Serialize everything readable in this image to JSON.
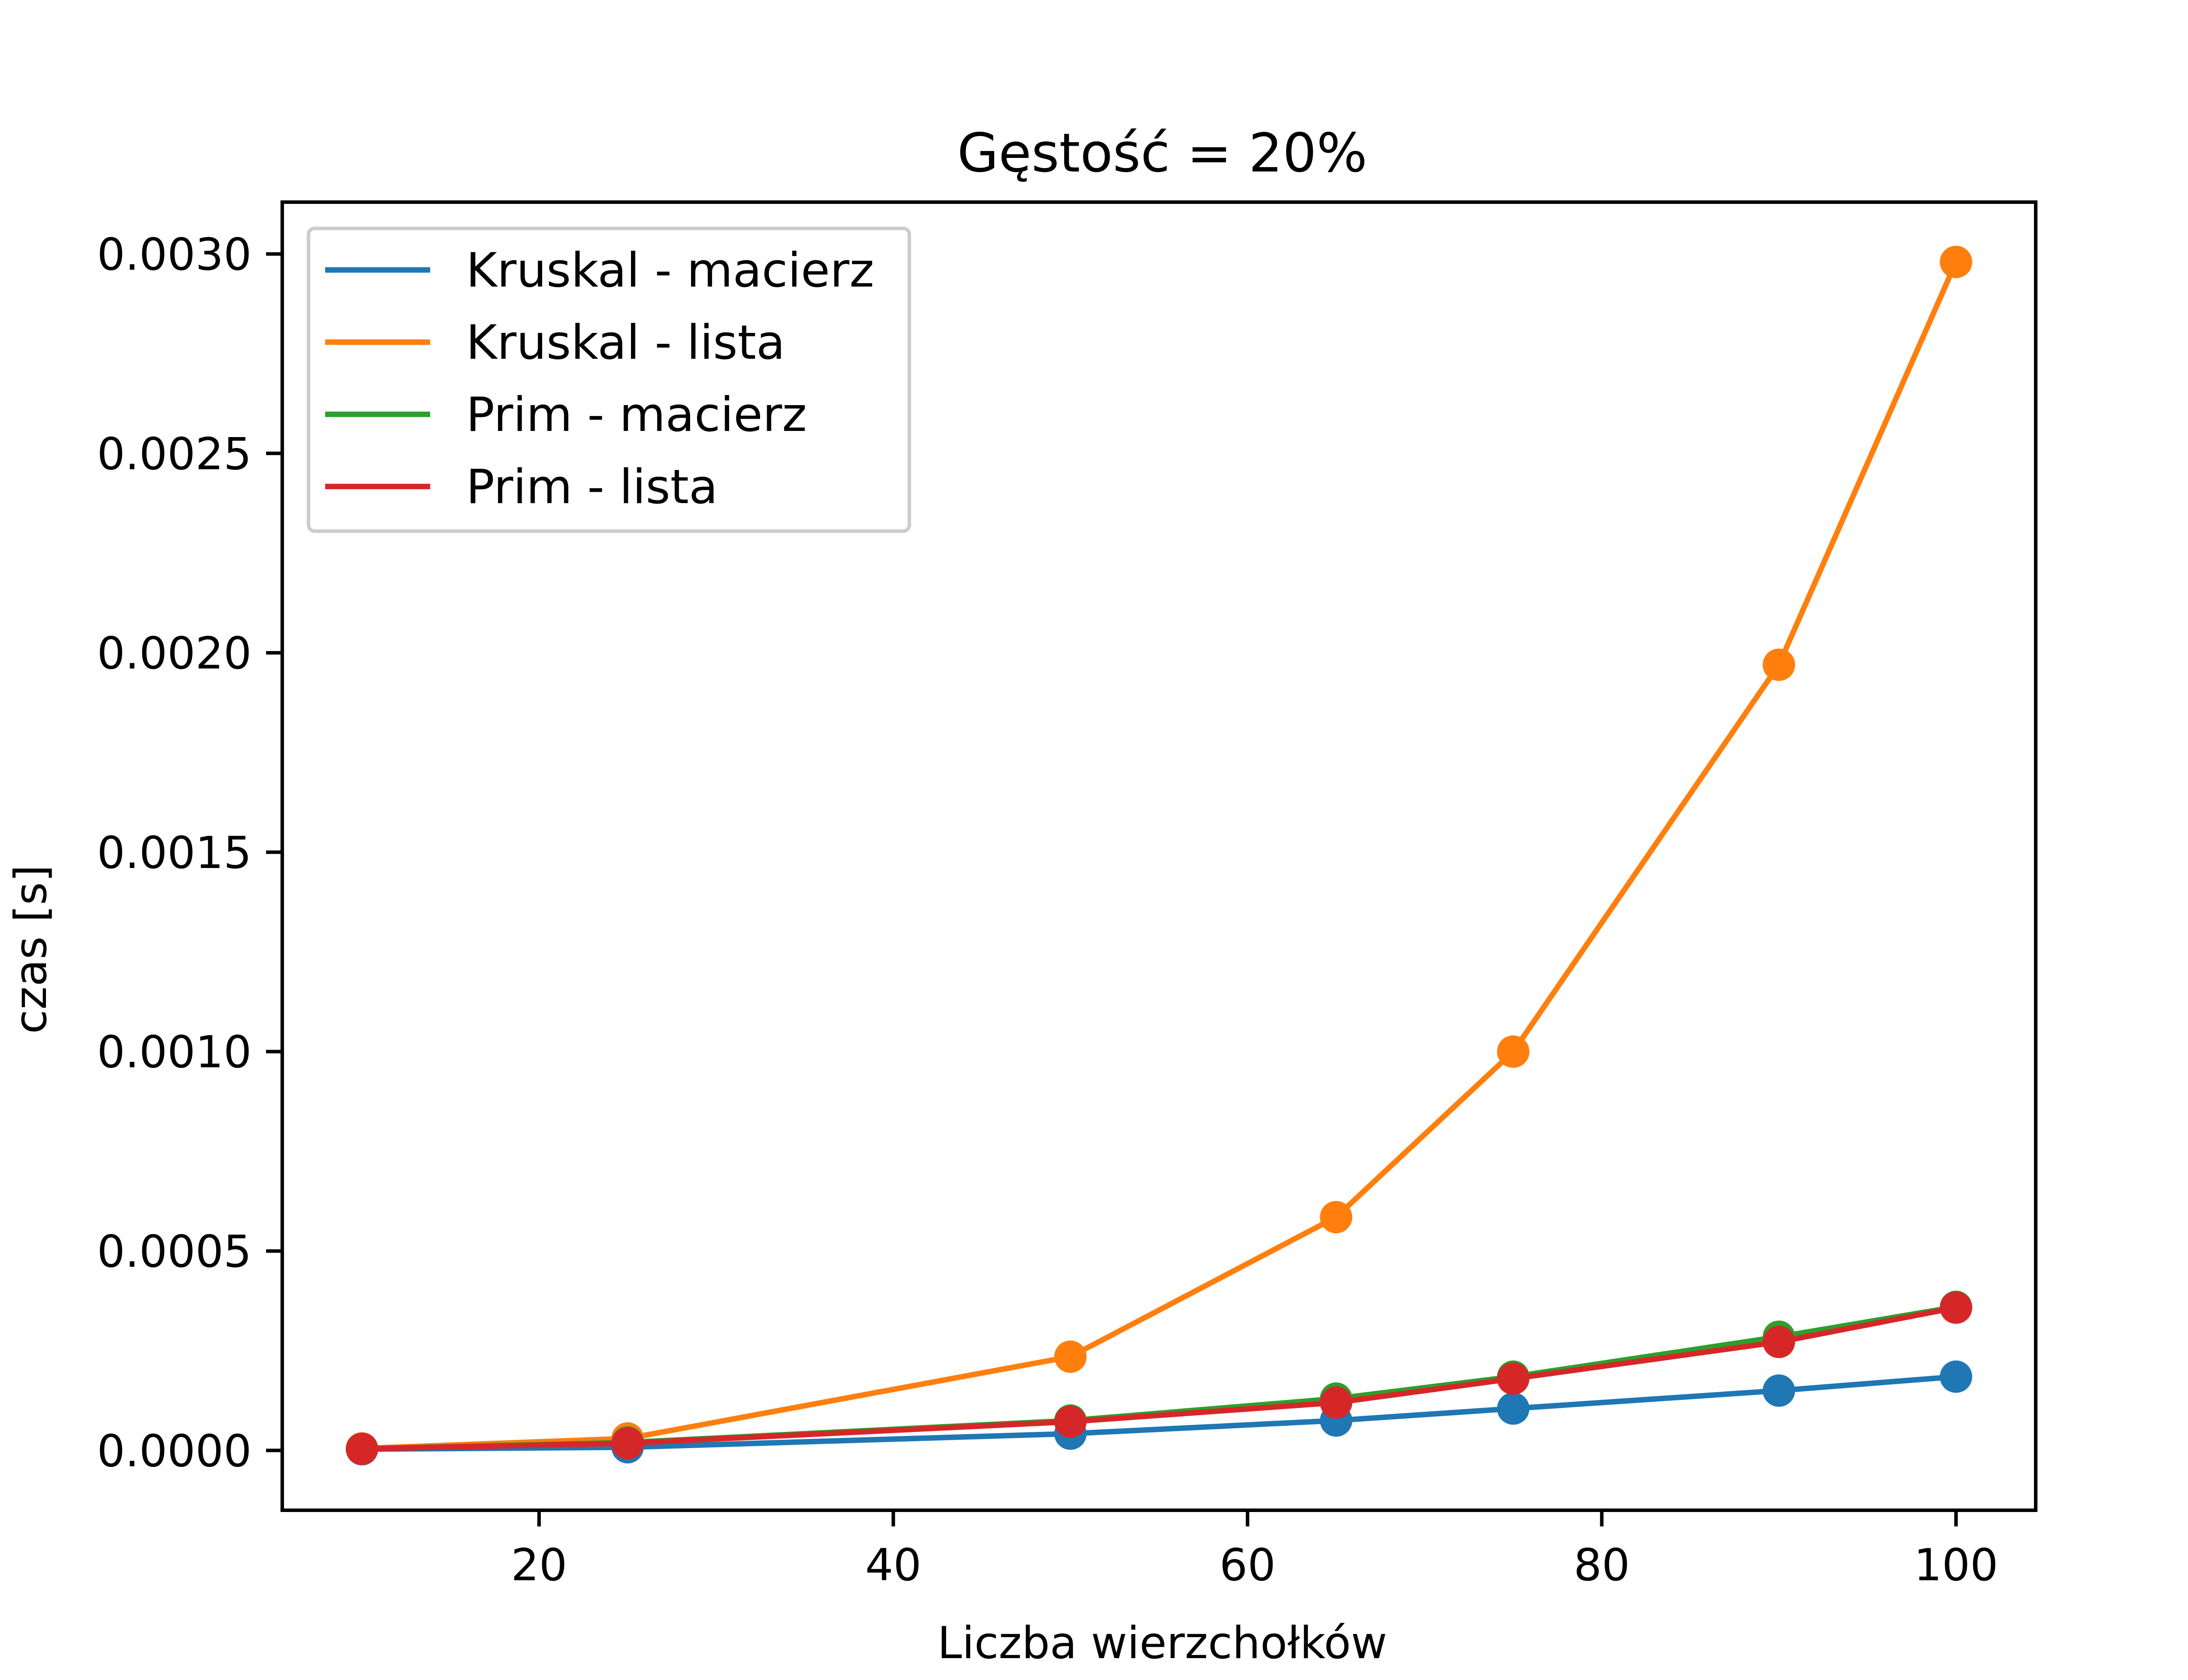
{
  "chart_data": {
    "type": "line",
    "title": "Gęstość = 20%",
    "xlabel": "Liczba wierzchołków",
    "ylabel": "czas [s]",
    "xlim": [
      5.5,
      104.5
    ],
    "ylim": [
      -0.00015,
      0.00313
    ],
    "xticks": [
      20,
      40,
      60,
      80,
      100
    ],
    "yticks": [
      0.0,
      0.0005,
      0.001,
      0.0015,
      0.002,
      0.0025,
      0.003
    ],
    "xtick_labels": [
      "20",
      "40",
      "60",
      "80",
      "100"
    ],
    "ytick_labels": [
      "0.0000",
      "0.0005",
      "0.0010",
      "0.0015",
      "0.0020",
      "0.0025",
      "0.0030"
    ],
    "grid": false,
    "legend_position": "top-left",
    "x": [
      10,
      25,
      50,
      65,
      75,
      90,
      100
    ],
    "series": [
      {
        "name": "Kruskal - macierz",
        "color": "#1f77b4",
        "values": [
          3e-06,
          8e-06,
          4.2e-05,
          7.5e-05,
          0.000105,
          0.00015,
          0.000185
        ]
      },
      {
        "name": "Kruskal - lista",
        "color": "#ff7f0e",
        "values": [
          5e-06,
          3e-05,
          0.000235,
          0.000585,
          0.001,
          0.00197,
          0.00298
        ]
      },
      {
        "name": "Prim - macierz",
        "color": "#2ca02c",
        "values": [
          4e-06,
          2e-05,
          7.5e-05,
          0.00013,
          0.000185,
          0.000285,
          0.00036
        ]
      },
      {
        "name": "Prim - lista",
        "color": "#d62728",
        "values": [
          4e-06,
          1.8e-05,
          7.2e-05,
          0.00012,
          0.00018,
          0.000272,
          0.000358
        ]
      }
    ]
  }
}
